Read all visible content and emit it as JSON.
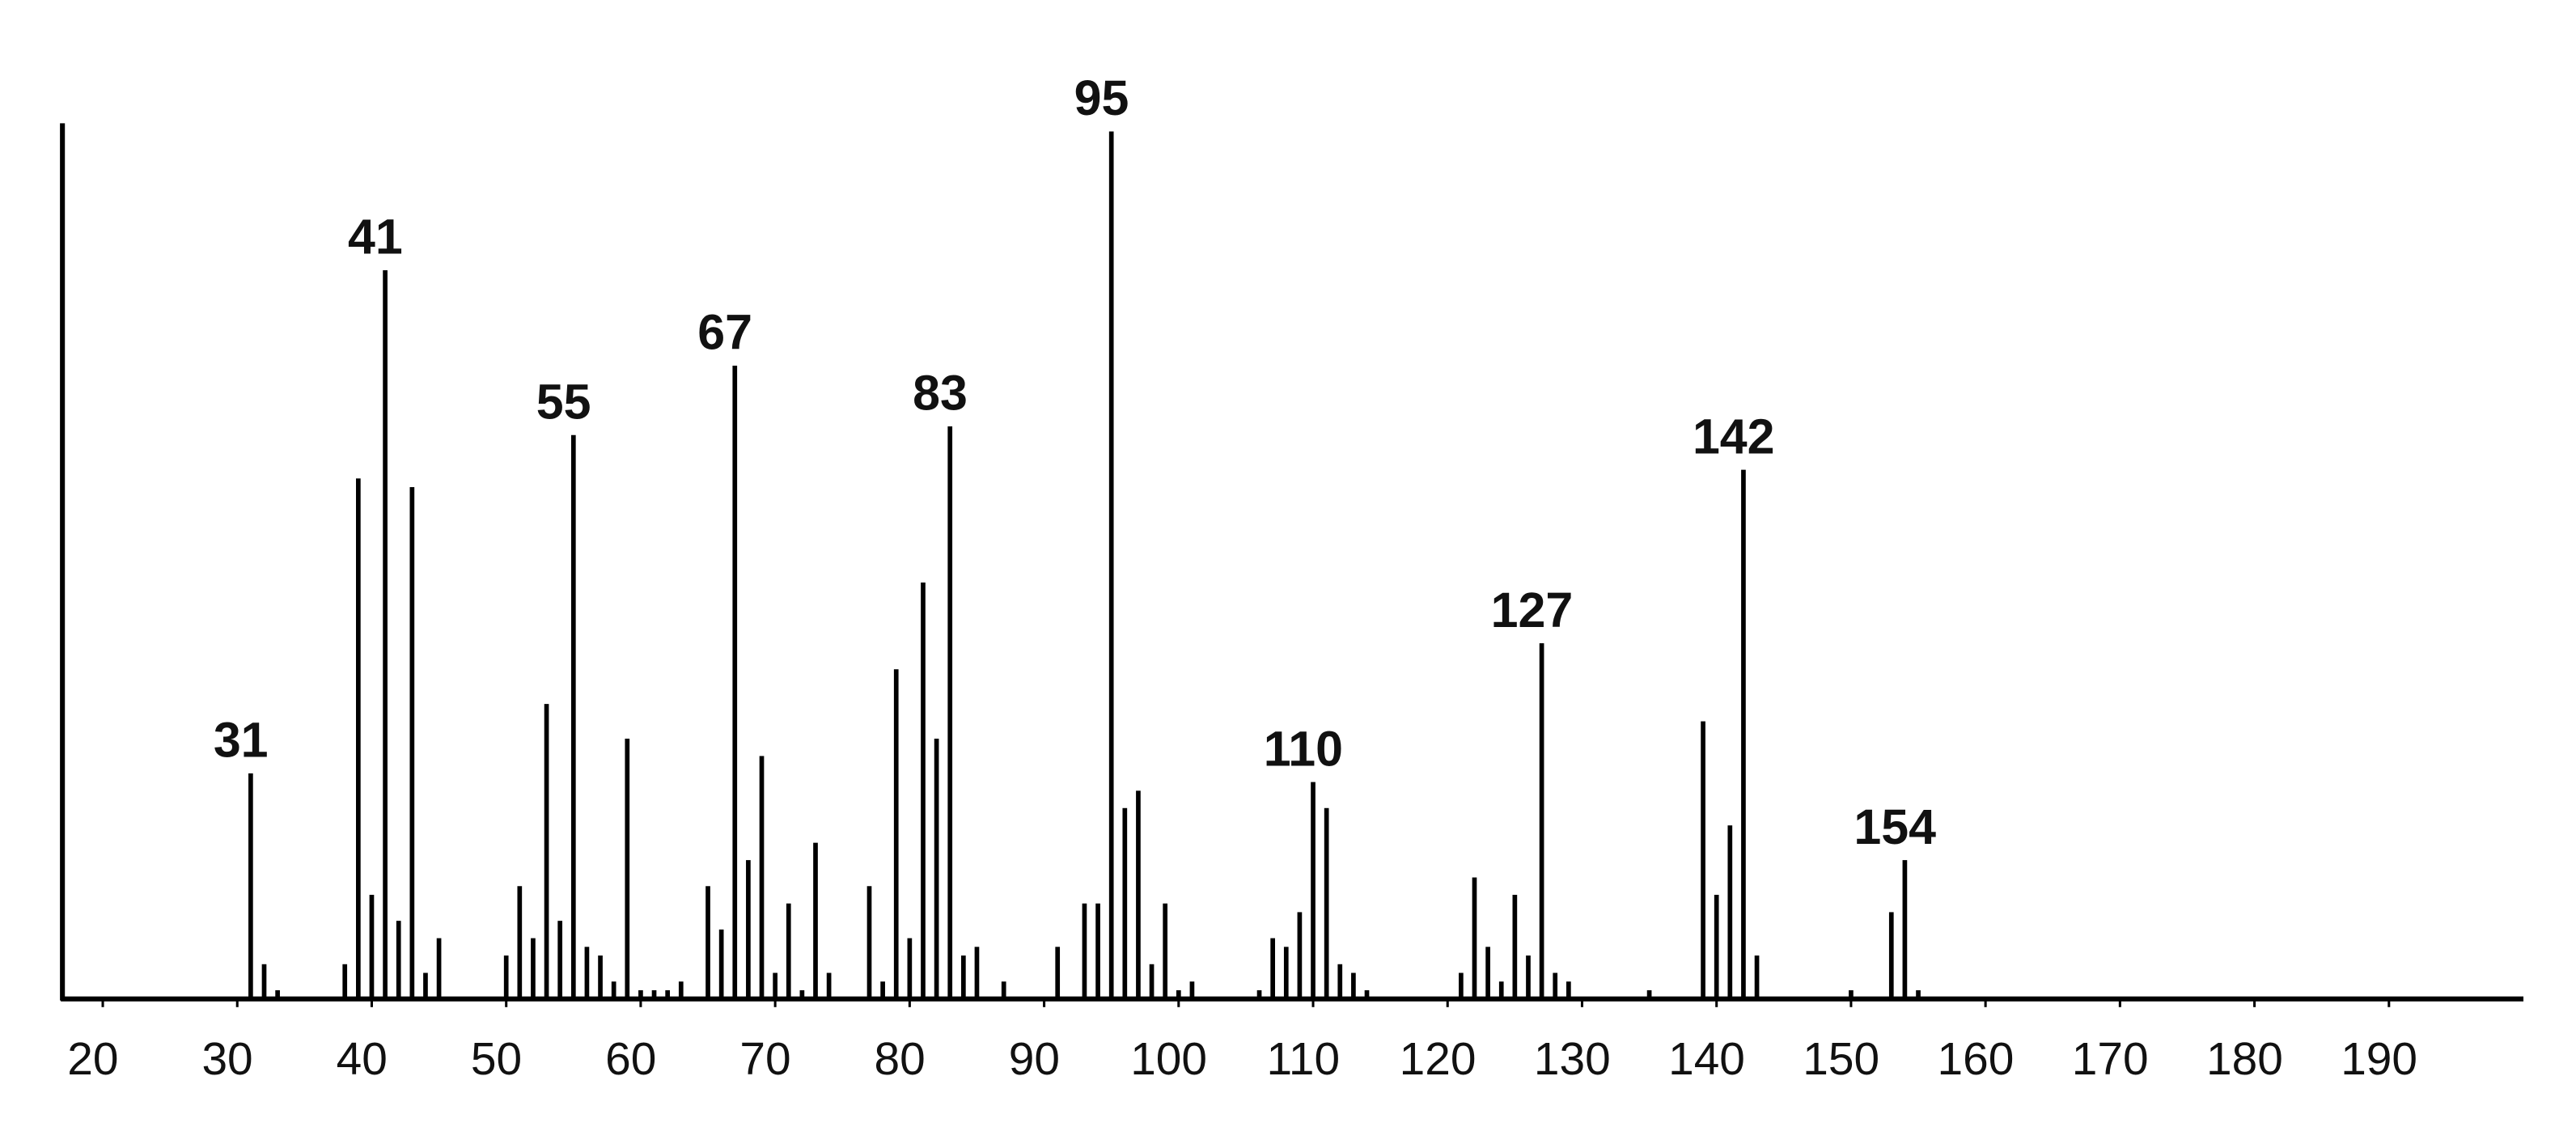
{
  "chart_data": {
    "type": "bar",
    "x": [
      31,
      32,
      33,
      38,
      39,
      40,
      41,
      42,
      43,
      44,
      45,
      50,
      51,
      52,
      53,
      54,
      55,
      56,
      57,
      58,
      59,
      60,
      61,
      62,
      63,
      65,
      66,
      67,
      68,
      69,
      70,
      71,
      72,
      73,
      74,
      77,
      78,
      79,
      80,
      81,
      82,
      83,
      84,
      85,
      87,
      91,
      93,
      94,
      95,
      96,
      97,
      98,
      99,
      100,
      101,
      106,
      107,
      108,
      109,
      110,
      111,
      112,
      113,
      114,
      121,
      122,
      123,
      124,
      125,
      126,
      127,
      128,
      129,
      135,
      139,
      140,
      141,
      142,
      143,
      150,
      153,
      154,
      155
    ],
    "values": [
      26,
      4,
      1,
      4,
      60,
      12,
      84,
      9,
      59,
      3,
      7,
      5,
      13,
      7,
      34,
      9,
      65,
      6,
      5,
      2,
      30,
      1,
      1,
      1,
      2,
      13,
      8,
      73,
      16,
      28,
      3,
      11,
      1,
      18,
      3,
      13,
      2,
      38,
      7,
      48,
      30,
      66,
      5,
      6,
      2,
      6,
      11,
      11,
      100,
      22,
      24,
      4,
      11,
      1,
      2,
      1,
      7,
      6,
      10,
      25,
      22,
      4,
      3,
      1,
      3,
      14,
      6,
      2,
      12,
      5,
      41,
      3,
      2,
      1,
      32,
      12,
      20,
      61,
      5,
      1,
      10,
      16,
      1
    ],
    "color": "#000000",
    "labeled_peaks": [
      31,
      41,
      55,
      67,
      83,
      95,
      110,
      127,
      142,
      154
    ],
    "xlim": [
      17,
      200
    ],
    "xticks": [
      20,
      30,
      40,
      50,
      60,
      70,
      80,
      90,
      100,
      110,
      120,
      130,
      140,
      150,
      160,
      170,
      180,
      190
    ],
    "ylim": [
      0,
      100
    ]
  }
}
